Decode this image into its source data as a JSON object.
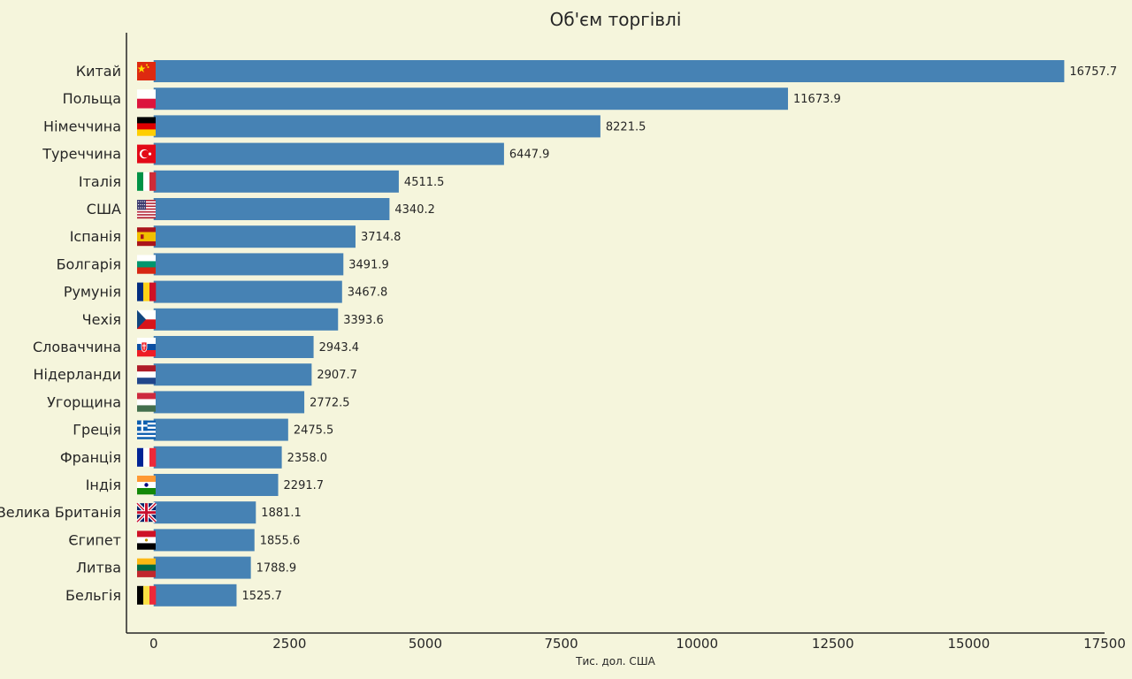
{
  "chart_data": {
    "type": "bar",
    "orientation": "horizontal",
    "title": "Об'єм торгівлі",
    "xlabel": "Тис. дол. США",
    "ylabel": "",
    "xlim": [
      -500,
      17500
    ],
    "xticks": [
      0,
      2500,
      5000,
      7500,
      10000,
      12500,
      15000,
      17500
    ],
    "bar_color": "#4682b4",
    "background": "#f5f5dc",
    "grid": false,
    "categories": [
      "Китай",
      "Польща",
      "Німеччина",
      "Туреччина",
      "Італія",
      "США",
      "Іспанія",
      "Болгарія",
      "Румунія",
      "Чехія",
      "Словаччина",
      "Нідерланди",
      "Угорщина",
      "Греція",
      "Франція",
      "Індія",
      "Велика Британія",
      "Єгипет",
      "Литва",
      "Бельгія"
    ],
    "values": [
      16757.7,
      11673.9,
      8221.5,
      6447.9,
      4511.5,
      4340.2,
      3714.8,
      3491.9,
      3467.8,
      3393.6,
      2943.4,
      2907.7,
      2772.5,
      2475.5,
      2358.0,
      2291.7,
      1881.1,
      1855.6,
      1788.9,
      1525.7
    ],
    "value_labels": [
      "16757.7",
      "11673.9",
      "8221.5",
      "6447.9",
      "4511.5",
      "4340.2",
      "3714.8",
      "3491.9",
      "3467.8",
      "3393.6",
      "2943.4",
      "2907.7",
      "2772.5",
      "2475.5",
      "2358.0",
      "2291.7",
      "1881.1",
      "1855.6",
      "1788.9",
      "1525.7"
    ],
    "flags": [
      "china-flag-icon",
      "poland-flag-icon",
      "germany-flag-icon",
      "turkey-flag-icon",
      "italy-flag-icon",
      "usa-flag-icon",
      "spain-flag-icon",
      "bulgaria-flag-icon",
      "romania-flag-icon",
      "czechia-flag-icon",
      "slovakia-flag-icon",
      "netherlands-flag-icon",
      "hungary-flag-icon",
      "greece-flag-icon",
      "france-flag-icon",
      "india-flag-icon",
      "uk-flag-icon",
      "egypt-flag-icon",
      "lithuania-flag-icon",
      "belgium-flag-icon"
    ]
  }
}
